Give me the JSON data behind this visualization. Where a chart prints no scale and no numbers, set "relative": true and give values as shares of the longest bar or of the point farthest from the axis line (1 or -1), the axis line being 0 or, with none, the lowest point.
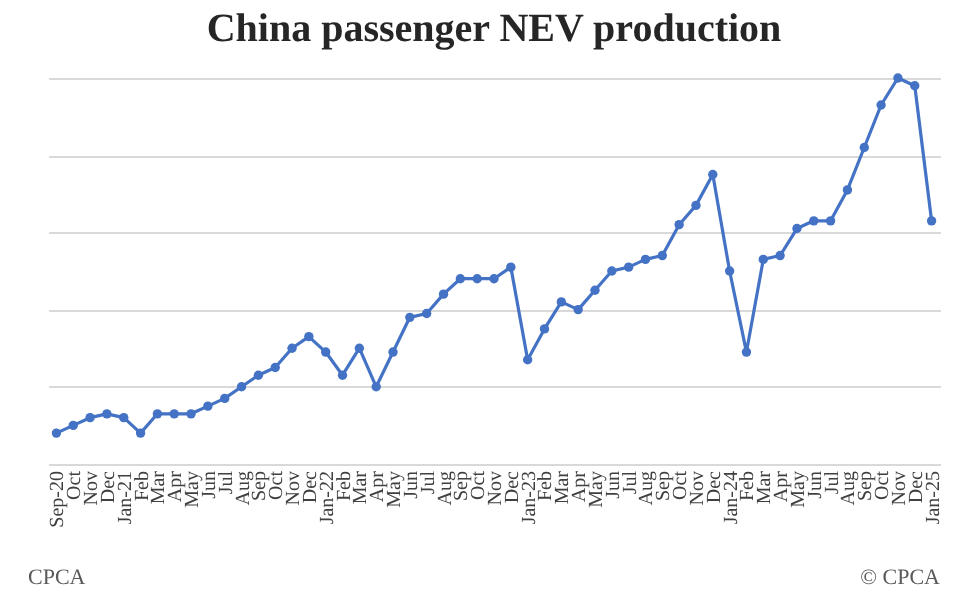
{
  "chart_data": {
    "type": "line",
    "title": "China passenger NEV production",
    "relative": true,
    "grid": "y",
    "marker": "circle",
    "line_style": "solid",
    "categories": [
      "Sep-20",
      "Oct",
      "Nov",
      "Dec",
      "Jan-21",
      "Feb",
      "Mar",
      "Apr",
      "May",
      "Jun",
      "Jul",
      "Aug",
      "Sep",
      "Oct",
      "Nov",
      "Dec",
      "Jan-22",
      "Feb",
      "Mar",
      "Apr",
      "May",
      "Jun",
      "Jul",
      "Aug",
      "Sep",
      "Oct",
      "Nov",
      "Dec",
      "Jan-23",
      "Feb",
      "Mar",
      "Apr",
      "May",
      "Jun",
      "Jul",
      "Aug",
      "Sep",
      "Oct",
      "Nov",
      "Dec",
      "Jan-24",
      "Feb",
      "Mar",
      "Apr",
      "May",
      "Jun",
      "Jul",
      "Aug",
      "Sep",
      "Oct",
      "Nov",
      "Dec",
      "Jan-25"
    ],
    "series": [
      {
        "color": "#4472c4",
        "values": [
          0.08,
          0.1,
          0.12,
          0.13,
          0.12,
          0.08,
          0.13,
          0.13,
          0.13,
          0.15,
          0.17,
          0.2,
          0.23,
          0.25,
          0.3,
          0.33,
          0.29,
          0.23,
          0.3,
          0.2,
          0.29,
          0.38,
          0.39,
          0.44,
          0.48,
          0.48,
          0.48,
          0.51,
          0.27,
          0.35,
          0.42,
          0.4,
          0.45,
          0.5,
          0.51,
          0.53,
          0.54,
          0.62,
          0.67,
          0.75,
          0.5,
          0.29,
          0.53,
          0.54,
          0.61,
          0.63,
          0.63,
          0.71,
          0.82,
          0.93,
          1,
          0.98,
          0.63
        ]
      }
    ],
    "annotations": [
      "CPCA",
      "© CPCA"
    ]
  }
}
